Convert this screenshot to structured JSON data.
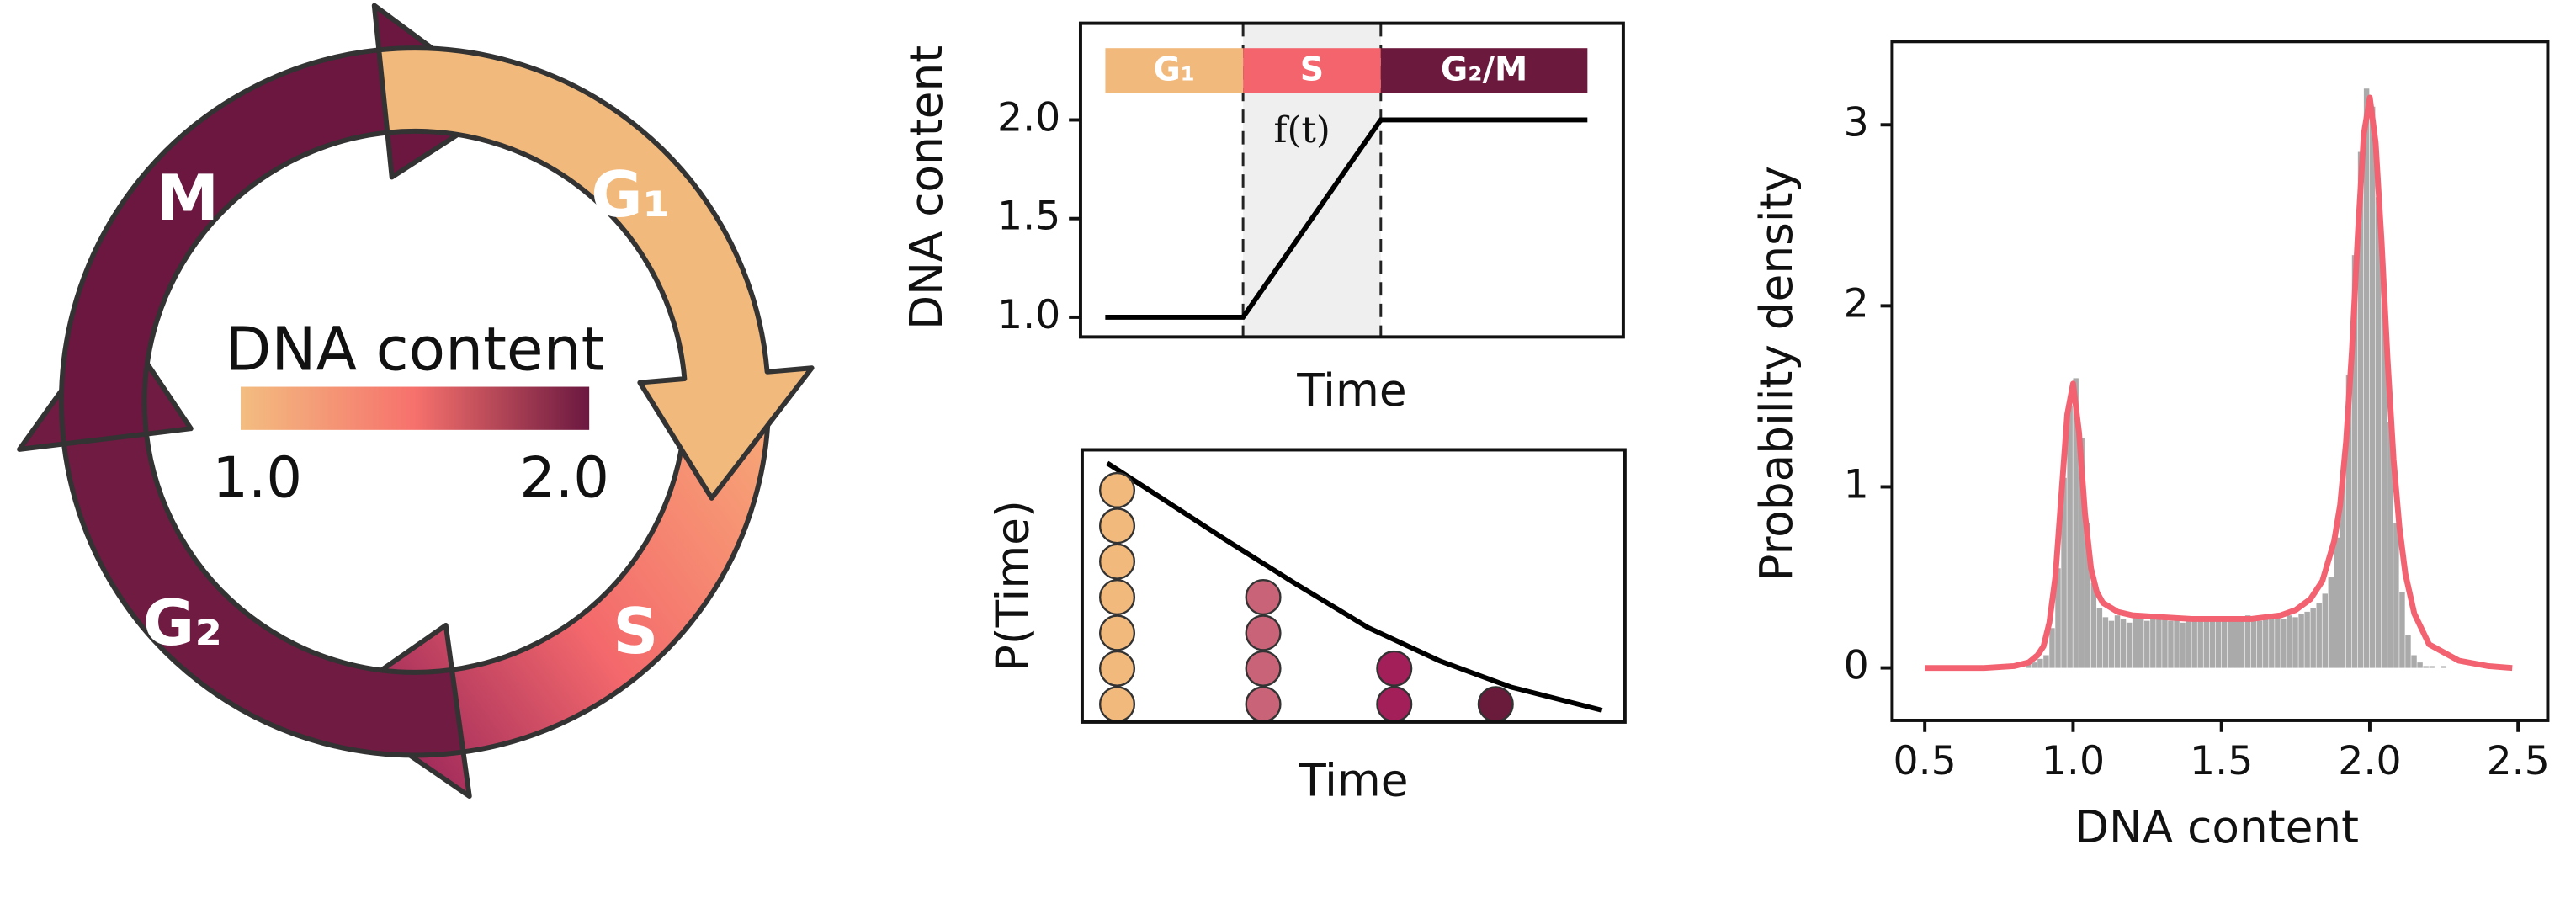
{
  "diagram": {
    "phases": [
      {
        "label": "G₁",
        "color": "#f2b97c"
      },
      {
        "label": "S",
        "colors": [
          "#f7a877",
          "#f4696c",
          "#8e1d57"
        ]
      },
      {
        "label": "G₂",
        "color": "#6f1b42"
      },
      {
        "label": "M",
        "color": "#6b1740"
      }
    ],
    "colorbar": {
      "title": "DNA content",
      "colors": [
        "#f3bd80",
        "#f6716c",
        "#6b1840"
      ],
      "range": [
        1,
        2
      ],
      "ticks": [
        {
          "value": 1,
          "label": "1.0"
        },
        {
          "value": 2,
          "label": "2.0"
        }
      ]
    }
  },
  "chart_data": [
    {
      "type": "line",
      "ylabel": "DNA content",
      "xlabel": "Time",
      "x": [
        0,
        1,
        2,
        3.5
      ],
      "values": [
        1,
        1,
        2,
        2
      ],
      "color": "#000000",
      "xlim": [
        -0.18,
        3.76
      ],
      "ylim": [
        0.9,
        2.49
      ],
      "yticks": [
        {
          "value": 1,
          "label": "1.0"
        },
        1.5,
        {
          "value": 2,
          "label": "2.0"
        }
      ],
      "phases": [
        {
          "name": "G₁",
          "start": 0,
          "end": 1,
          "color": "#f2b97c"
        },
        {
          "name": "S",
          "start": 1,
          "end": 2,
          "color": "#f4646c",
          "shade": "#efefef"
        },
        {
          "name": "G₂/M",
          "start": 2,
          "end": 3.5,
          "color": "#6b1a3d"
        }
      ],
      "annotation": "f(t)"
    },
    {
      "type": "dots",
      "ylabel": "P(Time)",
      "xlabel": "Time",
      "xlim": [
        0,
        15.2
      ],
      "ylim": [
        0,
        7.63
      ],
      "x": [
        0.98,
        5.07,
        8.74,
        11.58
      ],
      "values": [
        7,
        4,
        2,
        1
      ],
      "colors": [
        "#f2b97c",
        "#c96478",
        "#a21f5a",
        "#6a1a3a"
      ],
      "curve": {
        "x": [
          0.7,
          2,
          4,
          6,
          8,
          10,
          12,
          14.56
        ],
        "values": [
          7.26,
          6.42,
          5.12,
          3.86,
          2.65,
          1.72,
          0.98,
          0.33
        ],
        "color": "#000000"
      }
    },
    {
      "type": "histogram",
      "xlabel": "DNA content",
      "ylabel": "Probability density",
      "xlim": [
        0.39,
        2.6
      ],
      "ylim": [
        -0.29,
        3.46
      ],
      "xticks": [
        0.5,
        {
          "value": 1,
          "label": "1.0"
        },
        1.5,
        {
          "value": 2,
          "label": "2.0"
        },
        2.5
      ],
      "yticks": [
        0,
        1,
        2,
        3
      ],
      "color": "#aaaaaa",
      "bins": [
        0.84,
        0.86,
        0.88,
        0.9,
        0.92,
        0.94,
        0.96,
        0.98,
        1.0,
        1.02,
        1.04,
        1.06,
        1.08,
        1.1,
        1.12,
        1.14,
        1.16,
        1.18,
        1.2,
        1.22,
        1.24,
        1.26,
        1.28,
        1.3,
        1.32,
        1.34,
        1.36,
        1.38,
        1.4,
        1.42,
        1.44,
        1.46,
        1.48,
        1.5,
        1.52,
        1.54,
        1.56,
        1.58,
        1.6,
        1.62,
        1.64,
        1.66,
        1.68,
        1.7,
        1.72,
        1.74,
        1.76,
        1.78,
        1.8,
        1.82,
        1.84,
        1.86,
        1.88,
        1.9,
        1.92,
        1.94,
        1.96,
        1.98,
        2.0,
        2.02,
        2.04,
        2.06,
        2.08,
        2.1,
        2.12,
        2.14,
        2.16,
        2.18,
        2.2,
        2.22,
        2.24,
        2.26,
        2.28,
        2.3
      ],
      "values": [
        0.02,
        0.03,
        0.05,
        0.07,
        0.22,
        0.55,
        1.05,
        1.45,
        1.6,
        1.27,
        0.8,
        0.47,
        0.33,
        0.28,
        0.26,
        0.29,
        0.27,
        0.25,
        0.28,
        0.27,
        0.26,
        0.29,
        0.27,
        0.28,
        0.26,
        0.27,
        0.25,
        0.28,
        0.27,
        0.26,
        0.28,
        0.27,
        0.26,
        0.27,
        0.28,
        0.26,
        0.27,
        0.29,
        0.27,
        0.26,
        0.28,
        0.27,
        0.28,
        0.27,
        0.29,
        0.28,
        0.3,
        0.31,
        0.33,
        0.36,
        0.41,
        0.5,
        0.72,
        1.08,
        1.62,
        2.28,
        2.85,
        3.2,
        3.1,
        2.6,
        2.0,
        1.36,
        0.8,
        0.42,
        0.18,
        0.07,
        0.03,
        0.01,
        0.01,
        0.0,
        0.01,
        0.0,
        0.0
      ],
      "curve": {
        "x": [
          0.5,
          0.7,
          0.8,
          0.85,
          0.88,
          0.9,
          0.92,
          0.94,
          0.96,
          0.98,
          1.0,
          1.02,
          1.04,
          1.06,
          1.08,
          1.1,
          1.15,
          1.2,
          1.3,
          1.4,
          1.5,
          1.6,
          1.7,
          1.75,
          1.8,
          1.84,
          1.88,
          1.9,
          1.92,
          1.94,
          1.96,
          1.98,
          2.0,
          2.02,
          2.04,
          2.06,
          2.08,
          2.1,
          2.12,
          2.15,
          2.2,
          2.3,
          2.4,
          2.48
        ],
        "values": [
          0,
          0.0,
          0.01,
          0.03,
          0.07,
          0.12,
          0.25,
          0.5,
          0.95,
          1.4,
          1.57,
          1.3,
          0.85,
          0.55,
          0.42,
          0.36,
          0.31,
          0.29,
          0.28,
          0.27,
          0.27,
          0.27,
          0.29,
          0.32,
          0.38,
          0.48,
          0.7,
          0.9,
          1.25,
          1.75,
          2.4,
          2.95,
          3.15,
          2.9,
          2.35,
          1.7,
          1.15,
          0.78,
          0.52,
          0.3,
          0.13,
          0.04,
          0.01,
          0
        ],
        "color": "#f26270"
      }
    }
  ]
}
